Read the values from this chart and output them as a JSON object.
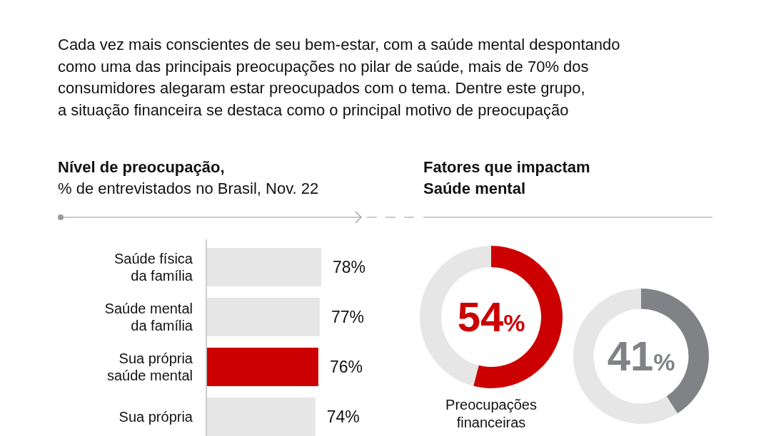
{
  "chart_data": [
    {
      "type": "bar",
      "orientation": "horizontal",
      "title": "Nível de preocupação,",
      "subtitle": "% de entrevistados no Brasil, Nov. 22",
      "annotations": [
        "Cada vez mais conscientes de seu bem-estar, com a saúde mental despontando\ncomo uma das principais preocupações no pilar de saúde, mais de 70% dos\nconsumidores alegaram estar preocupados com o tema. Dentre este grupo,\na situação financeira se destaca como o principal motivo de preocupação"
      ],
      "categories": [
        "Saúde física\nda família",
        "Saúde mental\nda família",
        "Sua própria\nsaúde mental",
        "Sua própria"
      ],
      "values": [
        78,
        77,
        76,
        74
      ],
      "colors": [
        "#e6e6e6",
        "#e6e6e6",
        "#cc0000",
        "#e6e6e6"
      ],
      "value_labels": [
        "78%",
        "77%",
        "76%",
        "74%"
      ]
    },
    {
      "type": "donut",
      "title": "Fatores que impactam\nSaúde mental",
      "categories": [
        "Preocupações\nfinanceiras",
        null
      ],
      "values": [
        54,
        46
      ],
      "colors": [
        "#cc0000",
        "#e6e6e6"
      ],
      "value_labels": [
        "54%",
        null
      ]
    },
    {
      "type": "donut",
      "categories": [
        null,
        null
      ],
      "values": [
        41,
        59
      ],
      "colors": [
        "#808285",
        "#e6e6e6"
      ],
      "value_labels": [
        "41%",
        null
      ]
    }
  ]
}
